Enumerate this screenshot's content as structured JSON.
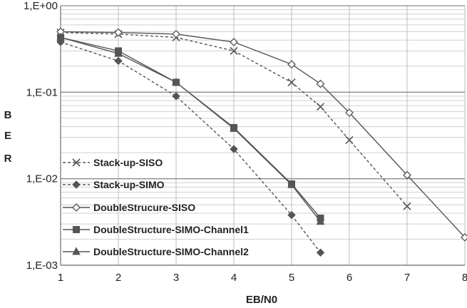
{
  "chart_data": {
    "type": "line",
    "title": "",
    "xlabel": "EB/N0",
    "ylabel": "BER",
    "x_ticks": [
      "1",
      "2",
      "3",
      "4",
      "5",
      "6",
      "7",
      "8"
    ],
    "y_ticks": [
      "1,E-03",
      "1,E-02",
      "1,E-01",
      "1,E+00"
    ],
    "y_scale": "log",
    "xlim": [
      1,
      8
    ],
    "ylim": [
      0.001,
      1
    ],
    "grid": true,
    "legend_position": "bottom-left",
    "series": [
      {
        "name": "Stack-up-SISO",
        "marker": "x",
        "dash": "dashed",
        "color": "#555555",
        "x": [
          1,
          2,
          3,
          4,
          5,
          5.5,
          6,
          7
        ],
        "y": [
          0.49,
          0.47,
          0.43,
          0.3,
          0.13,
          0.068,
          0.028,
          0.0048
        ]
      },
      {
        "name": "Stack-up-SIMO",
        "marker": "diamond-filled",
        "dash": "dashed",
        "color": "#555555",
        "x": [
          1,
          2,
          3,
          4,
          5,
          5.5
        ],
        "y": [
          0.38,
          0.23,
          0.09,
          0.022,
          0.0038,
          0.0014
        ]
      },
      {
        "name": "DoubleStrucure-SISO",
        "marker": "diamond-open",
        "dash": "solid",
        "color": "#555555",
        "x": [
          1,
          2,
          3,
          4,
          5,
          5.5,
          6,
          7,
          8
        ],
        "y": [
          0.5,
          0.49,
          0.47,
          0.38,
          0.21,
          0.125,
          0.058,
          0.011,
          0.0021
        ]
      },
      {
        "name": "DoubleStructure-SIMO-Channel1",
        "marker": "square",
        "dash": "solid",
        "color": "#555555",
        "x": [
          1,
          2,
          3,
          4,
          5,
          5.5
        ],
        "y": [
          0.43,
          0.3,
          0.13,
          0.039,
          0.0087,
          0.0035
        ]
      },
      {
        "name": "DoubleStructure-SIMO-Channel2",
        "marker": "triangle",
        "dash": "solid",
        "color": "#555555",
        "x": [
          1,
          2,
          3,
          4,
          5,
          5.5
        ],
        "y": [
          0.43,
          0.28,
          0.13,
          0.038,
          0.0085,
          0.0032
        ]
      }
    ]
  }
}
